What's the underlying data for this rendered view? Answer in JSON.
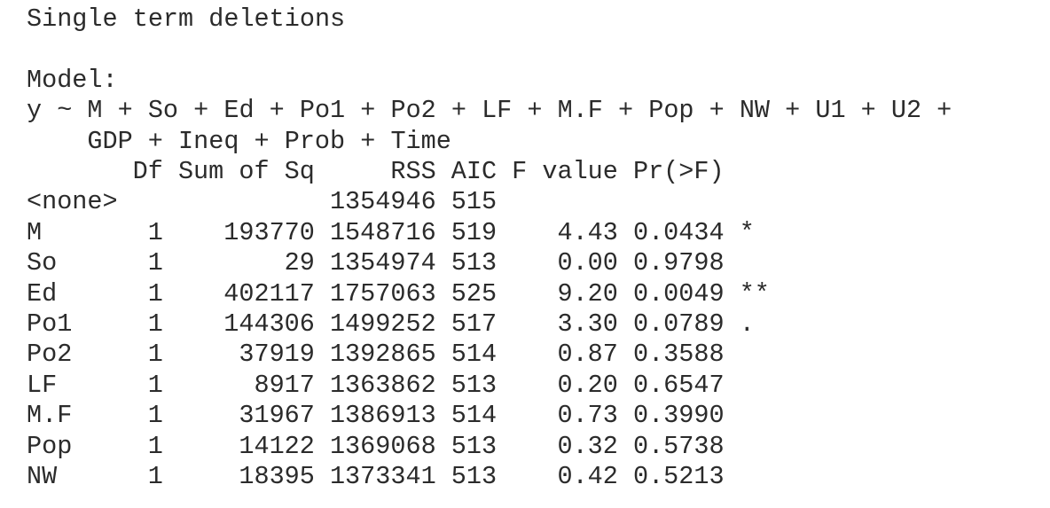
{
  "title": "Single term deletions",
  "model": {
    "label": "Model:",
    "formula": [
      "y ~ M + So + Ed + Po1 + Po2 + LF + M.F + Pop + NW + U1 + U2 +",
      "GDP + Ineq + Prob + Time"
    ]
  },
  "table": {
    "columns": [
      "Df",
      "Sum of Sq",
      "RSS",
      "AIC",
      "F value",
      "Pr(>F)"
    ],
    "rows": [
      [
        "<none>",
        null,
        null,
        1354946,
        515,
        null,
        null,
        null
      ],
      [
        "M",
        1,
        193770,
        1548716,
        519,
        "4.43",
        "0.0434",
        "*"
      ],
      [
        "So",
        1,
        29,
        1354974,
        513,
        "0.00",
        "0.9798",
        null
      ],
      [
        "Ed",
        1,
        402117,
        1757063,
        525,
        "9.20",
        "0.0049",
        "**"
      ],
      [
        "Po1",
        1,
        144306,
        1499252,
        517,
        "3.30",
        "0.0789",
        "."
      ],
      [
        "Po2",
        1,
        37919,
        1392865,
        514,
        "0.87",
        "0.3588",
        null
      ],
      [
        "LF",
        1,
        8917,
        1363862,
        513,
        "0.20",
        "0.6547",
        null
      ],
      [
        "M.F",
        1,
        31967,
        1386913,
        514,
        "0.73",
        "0.3990",
        null
      ],
      [
        "Pop",
        1,
        14122,
        1369068,
        513,
        "0.32",
        "0.5738",
        null
      ],
      [
        "NW",
        1,
        18395,
        1373341,
        513,
        "0.42",
        "0.5213",
        null
      ]
    ]
  }
}
